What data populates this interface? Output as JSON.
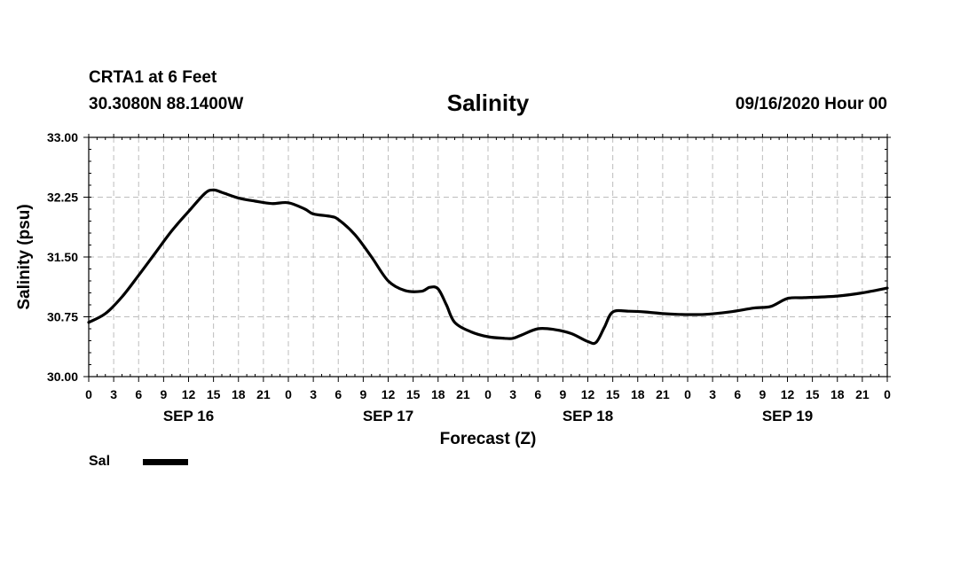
{
  "header": {
    "station": "CRTA1 at 6 Feet",
    "coords": "30.3080N 88.1400W",
    "title": "Salinity",
    "date": "09/16/2020 Hour 00"
  },
  "chart_data": {
    "type": "line",
    "title": "Salinity",
    "xlabel": "Forecast (Z)",
    "ylabel": "Salinity (psu)",
    "xlim": [
      0,
      96
    ],
    "ylim": [
      30.0,
      33.0
    ],
    "grid": true,
    "y_ticks": [
      {
        "value": 30.0,
        "label": "30.00"
      },
      {
        "value": 30.75,
        "label": "30.75"
      },
      {
        "value": 31.5,
        "label": "31.50"
      },
      {
        "value": 32.25,
        "label": "32.25"
      },
      {
        "value": 33.0,
        "label": "33.00"
      }
    ],
    "x_ticks": [
      {
        "hour": 0,
        "label": "0"
      },
      {
        "hour": 3,
        "label": "3"
      },
      {
        "hour": 6,
        "label": "6"
      },
      {
        "hour": 9,
        "label": "9"
      },
      {
        "hour": 12,
        "label": "12"
      },
      {
        "hour": 15,
        "label": "15"
      },
      {
        "hour": 18,
        "label": "18"
      },
      {
        "hour": 21,
        "label": "21"
      },
      {
        "hour": 24,
        "label": "0"
      },
      {
        "hour": 27,
        "label": "3"
      },
      {
        "hour": 30,
        "label": "6"
      },
      {
        "hour": 33,
        "label": "9"
      },
      {
        "hour": 36,
        "label": "12"
      },
      {
        "hour": 39,
        "label": "15"
      },
      {
        "hour": 42,
        "label": "18"
      },
      {
        "hour": 45,
        "label": "21"
      },
      {
        "hour": 48,
        "label": "0"
      },
      {
        "hour": 51,
        "label": "3"
      },
      {
        "hour": 54,
        "label": "6"
      },
      {
        "hour": 57,
        "label": "9"
      },
      {
        "hour": 60,
        "label": "12"
      },
      {
        "hour": 63,
        "label": "15"
      },
      {
        "hour": 66,
        "label": "18"
      },
      {
        "hour": 69,
        "label": "21"
      },
      {
        "hour": 72,
        "label": "0"
      },
      {
        "hour": 75,
        "label": "3"
      },
      {
        "hour": 78,
        "label": "6"
      },
      {
        "hour": 81,
        "label": "9"
      },
      {
        "hour": 84,
        "label": "12"
      },
      {
        "hour": 87,
        "label": "15"
      },
      {
        "hour": 90,
        "label": "18"
      },
      {
        "hour": 93,
        "label": "21"
      },
      {
        "hour": 96,
        "label": "0"
      }
    ],
    "date_labels": [
      {
        "hour": 12,
        "label": "SEP 16"
      },
      {
        "hour": 36,
        "label": "SEP 17"
      },
      {
        "hour": 60,
        "label": "SEP 18"
      },
      {
        "hour": 84,
        "label": "SEP 19"
      }
    ],
    "legend": [
      {
        "name": "Sal",
        "color": "#000000",
        "position": "bottom-left"
      }
    ],
    "series": [
      {
        "name": "Sal",
        "color": "#000000",
        "points": [
          [
            0,
            30.68
          ],
          [
            2,
            30.79
          ],
          [
            4,
            31.0
          ],
          [
            6,
            31.27
          ],
          [
            8,
            31.55
          ],
          [
            10,
            31.83
          ],
          [
            12,
            32.07
          ],
          [
            14,
            32.3
          ],
          [
            15,
            32.34
          ],
          [
            16,
            32.31
          ],
          [
            18,
            32.24
          ],
          [
            20,
            32.2
          ],
          [
            22,
            32.17
          ],
          [
            24,
            32.18
          ],
          [
            26,
            32.1
          ],
          [
            27,
            32.04
          ],
          [
            29,
            32.01
          ],
          [
            30,
            31.97
          ],
          [
            32,
            31.78
          ],
          [
            34,
            31.5
          ],
          [
            36,
            31.2
          ],
          [
            38,
            31.08
          ],
          [
            40,
            31.07
          ],
          [
            41,
            31.12
          ],
          [
            42,
            31.1
          ],
          [
            43,
            30.9
          ],
          [
            44,
            30.68
          ],
          [
            46,
            30.56
          ],
          [
            48,
            30.5
          ],
          [
            50,
            30.48
          ],
          [
            51,
            30.48
          ],
          [
            52,
            30.52
          ],
          [
            54,
            30.6
          ],
          [
            56,
            30.59
          ],
          [
            58,
            30.54
          ],
          [
            60,
            30.44
          ],
          [
            61,
            30.43
          ],
          [
            62,
            30.62
          ],
          [
            63,
            30.81
          ],
          [
            65,
            30.82
          ],
          [
            67,
            30.81
          ],
          [
            69,
            30.79
          ],
          [
            71,
            30.78
          ],
          [
            74,
            30.78
          ],
          [
            77,
            30.81
          ],
          [
            80,
            30.86
          ],
          [
            82,
            30.88
          ],
          [
            84,
            30.98
          ],
          [
            86,
            30.99
          ],
          [
            90,
            31.01
          ],
          [
            93,
            31.05
          ],
          [
            96,
            31.11
          ]
        ]
      }
    ]
  }
}
